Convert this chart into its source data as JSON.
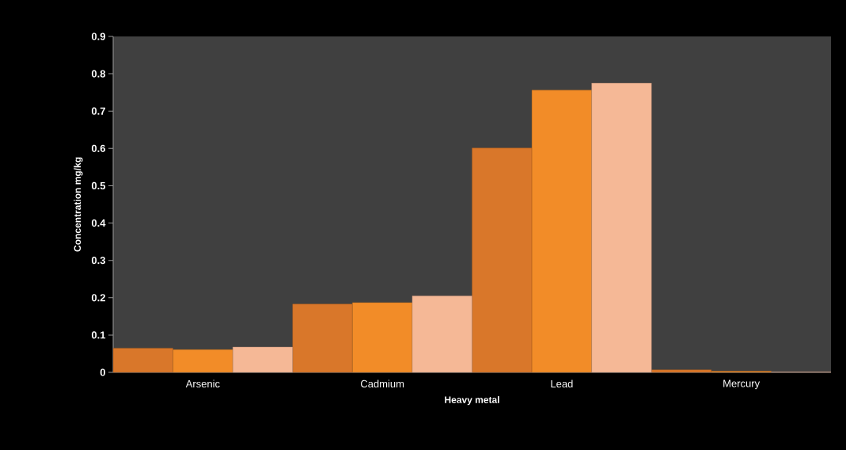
{
  "chart_data": {
    "type": "bar",
    "categories": [
      "Arsenic",
      "Cadmium",
      "Lead",
      "Mercury"
    ],
    "series": [
      {
        "color": "#d9772a",
        "values": [
          0.065,
          0.183,
          0.601,
          0.007
        ]
      },
      {
        "color": "#f28c28",
        "values": [
          0.061,
          0.187,
          0.756,
          0.003
        ]
      },
      {
        "color": "#f5b896",
        "values": [
          0.068,
          0.205,
          0.775,
          0.001
        ]
      }
    ],
    "xlabel": "Heavy metal",
    "ylabel": "Concentration mg/kg",
    "ylim": [
      0,
      0.9
    ],
    "yticks": [
      0,
      0.1,
      0.2,
      0.3,
      0.4,
      0.5,
      0.6,
      0.7,
      0.8,
      0.9
    ]
  }
}
